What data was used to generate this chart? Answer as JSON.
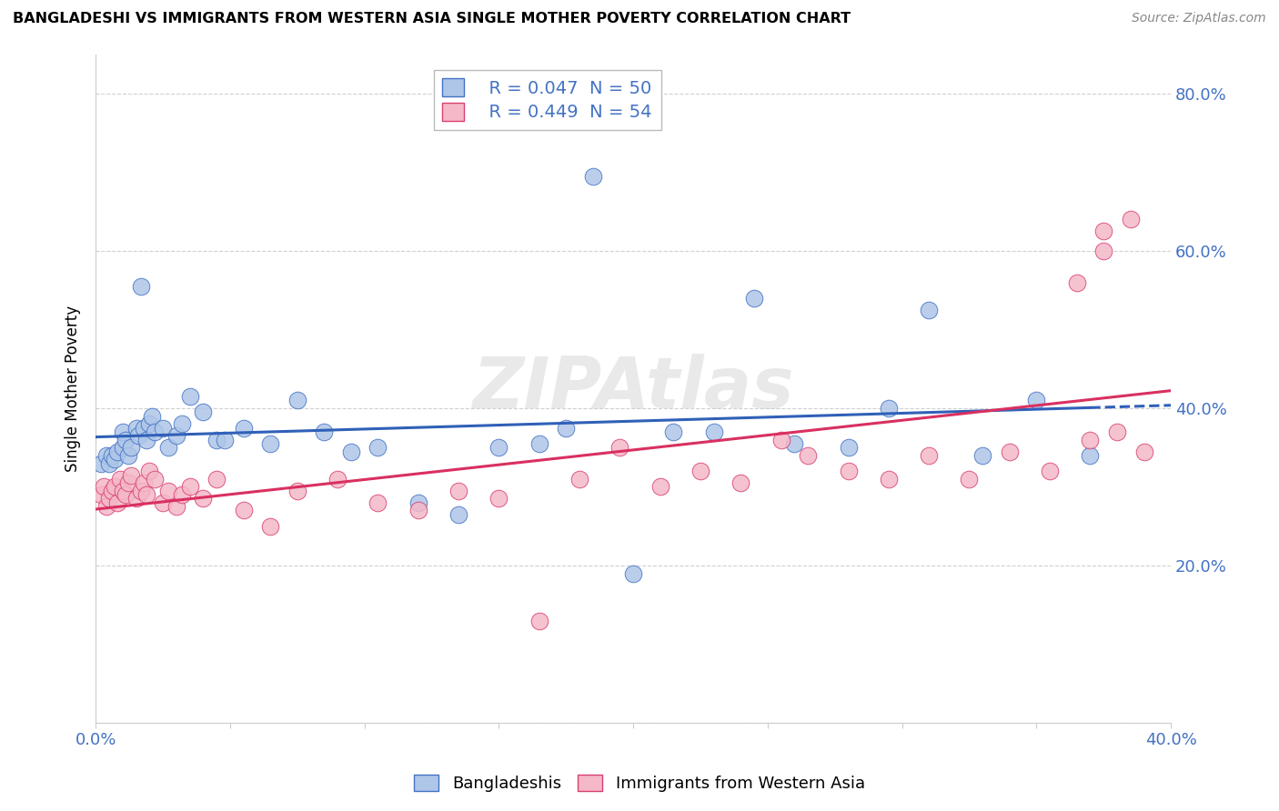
{
  "title": "BANGLADESHI VS IMMIGRANTS FROM WESTERN ASIA SINGLE MOTHER POVERTY CORRELATION CHART",
  "source": "Source: ZipAtlas.com",
  "ylabel": "Single Mother Poverty",
  "xlim": [
    0.0,
    0.4
  ],
  "ylim": [
    0.0,
    0.85
  ],
  "xtick_vals": [
    0.0,
    0.05,
    0.1,
    0.15,
    0.2,
    0.25,
    0.3,
    0.35,
    0.4
  ],
  "xtick_labels": [
    "0.0%",
    "",
    "",
    "",
    "",
    "",
    "",
    "",
    "40.0%"
  ],
  "ytick_vals": [
    0.0,
    0.2,
    0.4,
    0.6,
    0.8
  ],
  "ytick_labels_left": [
    "",
    "",
    "",
    "",
    ""
  ],
  "ytick_labels_right": [
    "",
    "20.0%",
    "40.0%",
    "60.0%",
    "80.0%"
  ],
  "legend_line1": "R = 0.047  N = 50",
  "legend_line2": "R = 0.449  N = 54",
  "blue_fill": "#aec6e8",
  "blue_edge": "#4472c4",
  "pink_fill": "#f4b8c8",
  "pink_edge": "#d94070",
  "line_blue_color": "#3060b8",
  "line_pink_color": "#d93060",
  "watermark": "ZIPAtlas",
  "bangladeshi_x": [
    0.002,
    0.004,
    0.005,
    0.006,
    0.007,
    0.008,
    0.01,
    0.01,
    0.011,
    0.012,
    0.013,
    0.015,
    0.016,
    0.017,
    0.018,
    0.019,
    0.02,
    0.021,
    0.022,
    0.025,
    0.027,
    0.03,
    0.032,
    0.035,
    0.04,
    0.045,
    0.048,
    0.055,
    0.065,
    0.075,
    0.085,
    0.095,
    0.105,
    0.12,
    0.135,
    0.15,
    0.165,
    0.175,
    0.185,
    0.2,
    0.215,
    0.23,
    0.245,
    0.26,
    0.28,
    0.295,
    0.31,
    0.33,
    0.35,
    0.37
  ],
  "bangladeshi_y": [
    0.33,
    0.34,
    0.33,
    0.34,
    0.335,
    0.345,
    0.35,
    0.37,
    0.36,
    0.34,
    0.35,
    0.375,
    0.365,
    0.555,
    0.375,
    0.36,
    0.38,
    0.39,
    0.37,
    0.375,
    0.35,
    0.365,
    0.38,
    0.415,
    0.395,
    0.36,
    0.36,
    0.375,
    0.355,
    0.41,
    0.37,
    0.345,
    0.35,
    0.28,
    0.265,
    0.35,
    0.355,
    0.375,
    0.695,
    0.19,
    0.37,
    0.37,
    0.54,
    0.355,
    0.35,
    0.4,
    0.525,
    0.34,
    0.41,
    0.34
  ],
  "western_asia_x": [
    0.002,
    0.003,
    0.004,
    0.005,
    0.006,
    0.007,
    0.008,
    0.009,
    0.01,
    0.011,
    0.012,
    0.013,
    0.015,
    0.017,
    0.018,
    0.019,
    0.02,
    0.022,
    0.025,
    0.027,
    0.03,
    0.032,
    0.035,
    0.04,
    0.045,
    0.055,
    0.065,
    0.075,
    0.09,
    0.105,
    0.12,
    0.135,
    0.15,
    0.165,
    0.18,
    0.195,
    0.21,
    0.225,
    0.24,
    0.255,
    0.265,
    0.28,
    0.295,
    0.31,
    0.325,
    0.34,
    0.355,
    0.37,
    0.38,
    0.39,
    0.365,
    0.375,
    0.385,
    0.375
  ],
  "western_asia_y": [
    0.29,
    0.3,
    0.275,
    0.285,
    0.295,
    0.3,
    0.28,
    0.31,
    0.295,
    0.29,
    0.305,
    0.315,
    0.285,
    0.295,
    0.305,
    0.29,
    0.32,
    0.31,
    0.28,
    0.295,
    0.275,
    0.29,
    0.3,
    0.285,
    0.31,
    0.27,
    0.25,
    0.295,
    0.31,
    0.28,
    0.27,
    0.295,
    0.285,
    0.13,
    0.31,
    0.35,
    0.3,
    0.32,
    0.305,
    0.36,
    0.34,
    0.32,
    0.31,
    0.34,
    0.31,
    0.345,
    0.32,
    0.36,
    0.37,
    0.345,
    0.56,
    0.625,
    0.64,
    0.6
  ]
}
